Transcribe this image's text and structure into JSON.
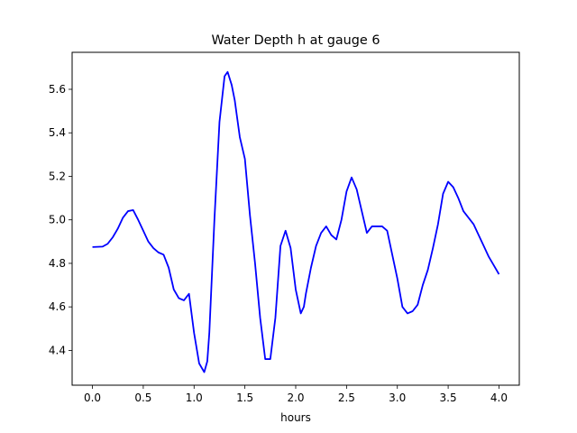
{
  "chart_data": {
    "type": "line",
    "title": "Water Depth h at gauge 6",
    "xlabel": "hours",
    "ylabel": "",
    "xlim": [
      -0.2,
      4.2
    ],
    "ylim": [
      4.24,
      5.77
    ],
    "xticks": [
      0.0,
      0.5,
      1.0,
      1.5,
      2.0,
      2.5,
      3.0,
      3.5,
      4.0
    ],
    "xtick_labels": [
      "0.0",
      "0.5",
      "1.0",
      "1.5",
      "2.0",
      "2.5",
      "3.0",
      "3.5",
      "4.0"
    ],
    "yticks": [
      4.4,
      4.6,
      4.8,
      5.0,
      5.2,
      5.4,
      5.6
    ],
    "ytick_labels": [
      "4.4",
      "4.6",
      "4.8",
      "5.0",
      "5.2",
      "5.4",
      "5.6"
    ],
    "grid": false,
    "legend": "none",
    "series": [
      {
        "color": "#0000ff",
        "x": [
          0.0,
          0.05,
          0.1,
          0.15,
          0.2,
          0.25,
          0.3,
          0.35,
          0.4,
          0.45,
          0.5,
          0.55,
          0.6,
          0.65,
          0.7,
          0.75,
          0.8,
          0.85,
          0.9,
          0.95,
          1.0,
          1.05,
          1.1,
          1.13,
          1.15,
          1.2,
          1.25,
          1.3,
          1.33,
          1.37,
          1.4,
          1.45,
          1.5,
          1.55,
          1.6,
          1.65,
          1.7,
          1.75,
          1.8,
          1.85,
          1.9,
          1.95,
          2.0,
          2.05,
          2.08,
          2.1,
          2.15,
          2.2,
          2.25,
          2.3,
          2.35,
          2.4,
          2.45,
          2.5,
          2.55,
          2.6,
          2.65,
          2.7,
          2.75,
          2.8,
          2.85,
          2.9,
          2.95,
          3.0,
          3.05,
          3.1,
          3.15,
          3.2,
          3.25,
          3.3,
          3.35,
          3.4,
          3.45,
          3.5,
          3.55,
          3.6,
          3.65,
          3.7,
          3.75,
          3.8,
          3.85,
          3.9,
          3.95,
          4.0
        ],
        "y": [
          4.875,
          4.876,
          4.877,
          4.89,
          4.92,
          4.96,
          5.01,
          5.04,
          5.045,
          5.0,
          4.95,
          4.9,
          4.87,
          4.85,
          4.84,
          4.78,
          4.68,
          4.64,
          4.63,
          4.66,
          4.48,
          4.34,
          4.3,
          4.35,
          4.48,
          5.0,
          5.45,
          5.66,
          5.68,
          5.62,
          5.55,
          5.38,
          5.28,
          5.02,
          4.8,
          4.55,
          4.36,
          4.36,
          4.55,
          4.88,
          4.95,
          4.87,
          4.68,
          4.57,
          4.6,
          4.66,
          4.78,
          4.88,
          4.94,
          4.97,
          4.93,
          4.91,
          5.0,
          5.13,
          5.195,
          5.14,
          5.04,
          4.94,
          4.97,
          4.97,
          4.97,
          4.95,
          4.84,
          4.73,
          4.6,
          4.57,
          4.58,
          4.61,
          4.7,
          4.77,
          4.87,
          4.98,
          5.12,
          5.175,
          5.15,
          5.1,
          5.04,
          5.01,
          4.98,
          4.93,
          4.88,
          4.83,
          4.79,
          4.75
        ]
      }
    ]
  }
}
